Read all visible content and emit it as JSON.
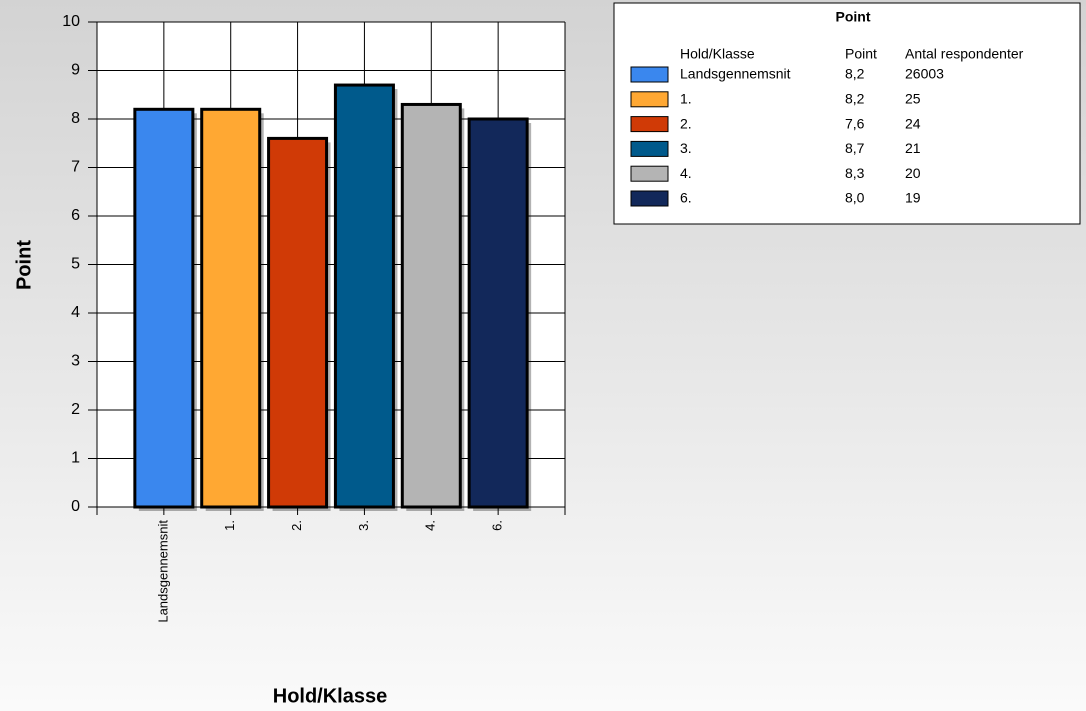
{
  "chart_data": {
    "type": "bar",
    "categories": [
      "Landsgennemsnit",
      "1.",
      "2.",
      "3.",
      "4.",
      "6."
    ],
    "values": [
      8.2,
      8.2,
      7.6,
      8.7,
      8.3,
      8.0
    ],
    "value_labels": [
      "8,2",
      "8,2",
      "7,6",
      "8,7",
      "8,3",
      "8,0"
    ],
    "colors": [
      "#3a87ee",
      "#ffa833",
      "#d03a06",
      "#005a8c",
      "#b4b4b4",
      "#12285a"
    ],
    "ylim": [
      0,
      10
    ],
    "yticks": [
      0,
      1,
      2,
      3,
      4,
      5,
      6,
      7,
      8,
      9,
      10
    ],
    "grid": true,
    "ylabel": "Point",
    "xlabel": "Hold/Klasse",
    "legend": {
      "title": "Point",
      "headers": [
        "Hold/Klasse",
        "Point",
        "Antal respondenter"
      ],
      "respondents": [
        26003,
        25,
        24,
        21,
        20,
        19
      ]
    }
  }
}
